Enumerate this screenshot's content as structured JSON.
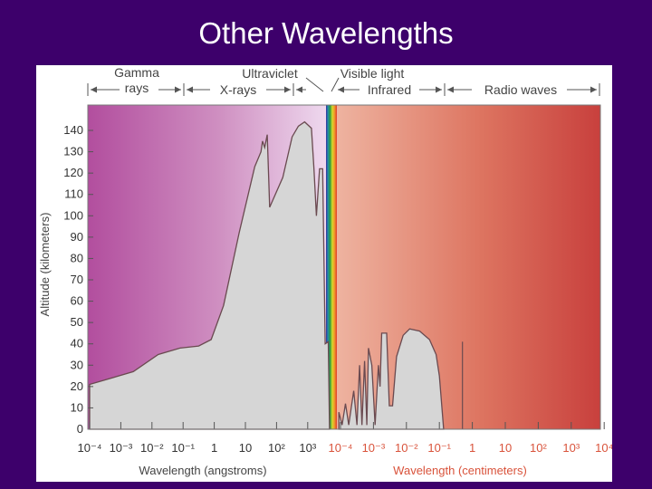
{
  "slide": {
    "title": "Other Wavelengths"
  },
  "chart_data": {
    "type": "area",
    "title": "",
    "ylabel": "Altitude (kilometers)",
    "xlabel_left": "Wavelength (angstroms)",
    "xlabel_right": "Wavelength (centimeters)",
    "ylim": [
      0,
      145
    ],
    "y_ticks": [
      "0",
      "10",
      "20",
      "30",
      "40",
      "50",
      "60",
      "70",
      "80",
      "90",
      "100",
      "110",
      "120",
      "130",
      "140"
    ],
    "x_ticks_left": [
      "10⁻⁴",
      "10⁻³",
      "10⁻²",
      "10⁻¹",
      "1",
      "10",
      "10²",
      "10³"
    ],
    "x_ticks_right": [
      "10⁻⁴",
      "10⁻³",
      "10⁻²",
      "10⁻¹",
      "1",
      "10",
      "10²",
      "10³",
      "10⁴"
    ],
    "bands": [
      {
        "name": "Gamma rays",
        "lines": [
          "Gamma",
          "rays"
        ]
      },
      {
        "name": "X-rays",
        "lines": [
          "X-rays"
        ]
      },
      {
        "name": "Ultraviclet",
        "lines": [
          "Ultraviclet"
        ]
      },
      {
        "name": "Visible light",
        "lines": [
          "Visible light"
        ]
      },
      {
        "name": "Infrared",
        "lines": [
          "Infrared"
        ]
      },
      {
        "name": "Radio waves",
        "lines": [
          "Radio waves"
        ]
      }
    ],
    "absorption_left": {
      "unit": "log10 angstroms",
      "points": [
        [
          -4,
          21
        ],
        [
          -2.6,
          27
        ],
        [
          -1.8,
          35
        ],
        [
          -1.1,
          38
        ],
        [
          -0.5,
          39
        ],
        [
          -0.1,
          42
        ],
        [
          0.3,
          58
        ],
        [
          0.8,
          92
        ],
        [
          1.3,
          123
        ],
        [
          1.5,
          130
        ],
        [
          1.55,
          135
        ],
        [
          1.62,
          132
        ],
        [
          1.7,
          138
        ],
        [
          1.78,
          104
        ],
        [
          2.2,
          118
        ],
        [
          2.5,
          137
        ],
        [
          2.7,
          142
        ],
        [
          2.9,
          144
        ],
        [
          3.12,
          141
        ],
        [
          3.2,
          122
        ],
        [
          3.28,
          100
        ],
        [
          3.38,
          122
        ],
        [
          3.48,
          122
        ],
        [
          3.56,
          40
        ],
        [
          3.66,
          41
        ],
        [
          3.7,
          0
        ]
      ]
    },
    "absorption_right": {
      "unit": "log10 centimeters",
      "points": [
        [
          -4.05,
          0
        ],
        [
          -4.05,
          8
        ],
        [
          -3.95,
          2
        ],
        [
          -3.85,
          12
        ],
        [
          -3.75,
          2
        ],
        [
          -3.6,
          18
        ],
        [
          -3.5,
          2
        ],
        [
          -3.42,
          30
        ],
        [
          -3.35,
          2
        ],
        [
          -3.27,
          32
        ],
        [
          -3.2,
          2
        ],
        [
          -3.15,
          38
        ],
        [
          -3.05,
          30
        ],
        [
          -2.95,
          2
        ],
        [
          -2.85,
          30
        ],
        [
          -2.8,
          20
        ],
        [
          -2.75,
          45
        ],
        [
          -2.6,
          45
        ],
        [
          -2.52,
          11
        ],
        [
          -2.42,
          11
        ],
        [
          -2.3,
          34
        ],
        [
          -2.1,
          44
        ],
        [
          -1.9,
          47
        ],
        [
          -1.6,
          46
        ],
        [
          -1.3,
          42
        ],
        [
          -1.1,
          35
        ],
        [
          -1.0,
          25
        ],
        [
          -0.87,
          0
        ]
      ],
      "spike_at": -0.3,
      "spike_value": 41
    }
  }
}
